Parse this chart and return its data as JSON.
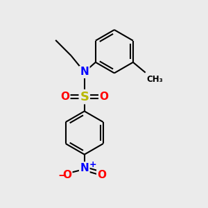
{
  "bg_color": "#ebebeb",
  "bond_color": "#000000",
  "bond_width": 1.5,
  "S_color": "#b8b800",
  "N_color": "#0000ff",
  "O_color": "#ff0000",
  "figsize": [
    3.0,
    3.0
  ],
  "dpi": 100,
  "xlim": [
    0,
    10
  ],
  "ylim": [
    0,
    10
  ]
}
